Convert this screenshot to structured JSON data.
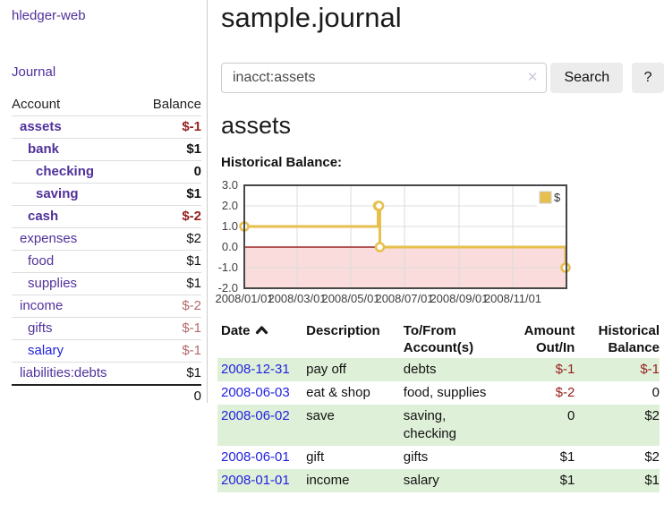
{
  "colors": {
    "link_purple": "#50319a",
    "link_blue": "#2222e0",
    "negative_strong": "#96201f",
    "negative_muted": "#b46a6b",
    "row_green": "#dff0d8",
    "button_bg": "#ececec"
  },
  "icons": {
    "clear_search": "✕",
    "sort_ascending": "chevron-up"
  },
  "sidebar": {
    "app_title": "hledger-web",
    "nav": {
      "journal": "Journal"
    },
    "accounts": {
      "headers": {
        "account": "Account",
        "balance": "Balance"
      },
      "rows": [
        {
          "name": "assets",
          "balance": "$-1"
        },
        {
          "name": "bank",
          "balance": "$1"
        },
        {
          "name": "checking",
          "balance": "0"
        },
        {
          "name": "saving",
          "balance": "$1"
        },
        {
          "name": "cash",
          "balance": "$-2"
        },
        {
          "name": "expenses",
          "balance": "$2"
        },
        {
          "name": "food",
          "balance": "$1"
        },
        {
          "name": "supplies",
          "balance": "$1"
        },
        {
          "name": "income",
          "balance": "$-2"
        },
        {
          "name": "gifts",
          "balance": "$-1"
        },
        {
          "name": "salary",
          "balance": "$-1"
        },
        {
          "name": "liabilities:debts",
          "balance": "$1"
        }
      ],
      "total": "0"
    }
  },
  "main": {
    "title": "sample.journal",
    "search": {
      "value": "inacct:assets",
      "button_label": "Search",
      "help_label": "?"
    },
    "heading": "assets",
    "chart_label": "Historical Balance:"
  },
  "chart_data": {
    "type": "line",
    "subtype": "step-after",
    "title": "Historical Balance",
    "x_range": [
      "2008-01-01",
      "2009-01-01"
    ],
    "ylim": [
      -2.0,
      3.0
    ],
    "y_ticks": [
      "3.0",
      "2.0",
      "1.0",
      "0.0",
      "-1.0",
      "-2.0"
    ],
    "x_ticks": [
      {
        "date": "2008-01-01",
        "label": "2008/01/01"
      },
      {
        "date": "2008-03-01",
        "label": "2008/03/01"
      },
      {
        "date": "2008-05-01",
        "label": "2008/05/01"
      },
      {
        "date": "2008-07-01",
        "label": "2008/07/01"
      },
      {
        "date": "2008-09-01",
        "label": "2008/09/01"
      },
      {
        "date": "2008-11-01",
        "label": "2008/11/01"
      }
    ],
    "series": [
      {
        "name": "$",
        "color": "#e6bf4d",
        "points": [
          {
            "date": "2008-01-01",
            "value": 1
          },
          {
            "date": "2008-06-01",
            "value": 2
          },
          {
            "date": "2008-06-02",
            "value": 2
          },
          {
            "date": "2008-06-03",
            "value": 0
          },
          {
            "date": "2008-12-31",
            "value": -1
          }
        ]
      }
    ],
    "negative_fill": "#fadcdc",
    "zero_line_color": "#8b0000",
    "grid": true,
    "legend_position": "top-right"
  },
  "register": {
    "headers": {
      "date": "Date",
      "description": "Description",
      "tofrom_line1": "To/From",
      "tofrom_line2": "Account(s)",
      "amount_line1": "Amount",
      "amount_line2": "Out/In",
      "hist_line1": "Historical",
      "hist_line2": "Balance"
    },
    "rows": [
      {
        "date": "2008-12-31",
        "description": "pay off",
        "accounts": "debts",
        "amount": "$-1",
        "balance": "$-1"
      },
      {
        "date": "2008-06-03",
        "description": "eat & shop",
        "accounts": "food, supplies",
        "amount": "$-2",
        "balance": "0"
      },
      {
        "date": "2008-06-02",
        "description": "save",
        "accounts": "saving, checking",
        "amount": "0",
        "balance": "$2"
      },
      {
        "date": "2008-06-01",
        "description": "gift",
        "accounts": "gifts",
        "amount": "$1",
        "balance": "$2"
      },
      {
        "date": "2008-01-01",
        "description": "income",
        "accounts": "salary",
        "amount": "$1",
        "balance": "$1"
      }
    ]
  }
}
